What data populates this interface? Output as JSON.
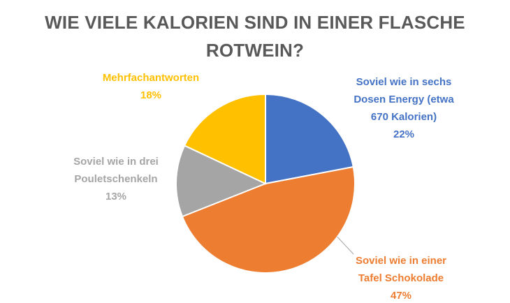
{
  "chart_data": {
    "type": "pie",
    "title": "WIE VIELE KALORIEN SIND IN EINER FLASCHE ROTWEIN?",
    "start_angle_deg": 0,
    "direction": "clockwise",
    "slices": [
      {
        "label_lines": [
          "Soviel wie in sechs",
          "Dosen Energy (etwa",
          "670 Kalorien)"
        ],
        "value": 22,
        "value_label": "22%",
        "color": "#4472C4"
      },
      {
        "label_lines": [
          "Soviel wie in einer",
          "Tafel Schokolade"
        ],
        "value": 47,
        "value_label": "47%",
        "color": "#ED7D31"
      },
      {
        "label_lines": [
          "Soviel wie in drei",
          "Pouletschenkeln"
        ],
        "value": 13,
        "value_label": "13%",
        "color": "#A5A5A5"
      },
      {
        "label_lines": [
          "Mehrfachantworten"
        ],
        "value": 18,
        "value_label": "18%",
        "color": "#FFC000"
      }
    ]
  }
}
